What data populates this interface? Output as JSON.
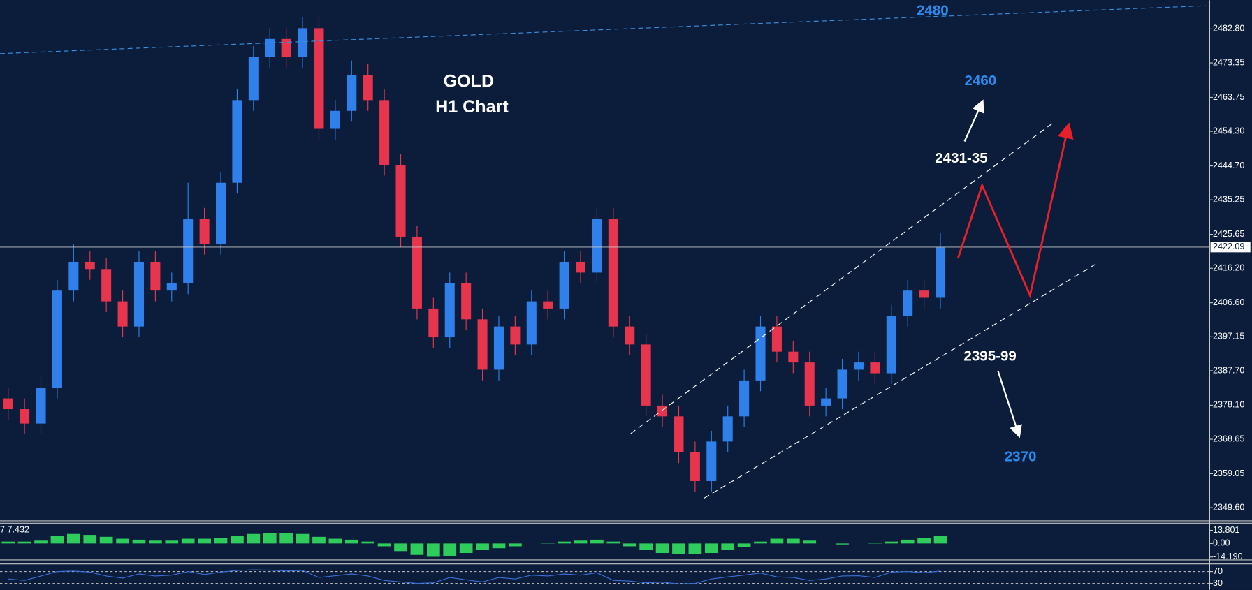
{
  "chart_data": {
    "type": "candlestick",
    "title": "GOLD",
    "subtitle": "H1 Chart",
    "open": [
      2380,
      2377,
      2373,
      2383,
      2410,
      2418,
      2416,
      2407,
      2400,
      2418,
      2410,
      2412,
      2430,
      2423,
      2440,
      2463,
      2475,
      2480,
      2475,
      2483,
      2455,
      2460,
      2470,
      2463,
      2445,
      2425,
      2405,
      2397,
      2412,
      2402,
      2388,
      2400,
      2395,
      2407,
      2405,
      2418,
      2415,
      2430,
      2400,
      2395,
      2378,
      2375,
      2365,
      2357,
      2368,
      2375,
      2385,
      2400,
      2393,
      2390,
      2378,
      2380,
      2388,
      2390,
      2387,
      2403,
      2410,
      2408
    ],
    "high": [
      2383,
      2380,
      2386,
      2413,
      2423,
      2421,
      2419,
      2410,
      2421,
      2421,
      2415,
      2440,
      2433,
      2443,
      2466,
      2478,
      2483,
      2483,
      2486,
      2486,
      2463,
      2474,
      2473,
      2466,
      2448,
      2428,
      2408,
      2415,
      2415,
      2405,
      2403,
      2403,
      2410,
      2410,
      2421,
      2421,
      2433,
      2433,
      2403,
      2398,
      2381,
      2378,
      2368,
      2371,
      2378,
      2388,
      2403,
      2403,
      2396,
      2393,
      2383,
      2391,
      2393,
      2393,
      2406,
      2413,
      2413,
      2426
    ],
    "low": [
      2374,
      2370,
      2370,
      2380,
      2407,
      2413,
      2404,
      2397,
      2397,
      2407,
      2407,
      2409,
      2420,
      2420,
      2437,
      2460,
      2472,
      2472,
      2472,
      2452,
      2452,
      2457,
      2460,
      2442,
      2422,
      2402,
      2394,
      2394,
      2399,
      2385,
      2385,
      2392,
      2392,
      2402,
      2402,
      2412,
      2412,
      2397,
      2392,
      2375,
      2372,
      2362,
      2354,
      2354,
      2365,
      2372,
      2382,
      2390,
      2387,
      2375,
      2375,
      2377,
      2385,
      2384,
      2384,
      2400,
      2405,
      2405
    ],
    "close": [
      2377,
      2373,
      2383,
      2410,
      2418,
      2416,
      2407,
      2400,
      2418,
      2410,
      2412,
      2430,
      2423,
      2440,
      2463,
      2475,
      2480,
      2475,
      2483,
      2455,
      2460,
      2470,
      2463,
      2445,
      2425,
      2405,
      2397,
      2412,
      2402,
      2388,
      2400,
      2395,
      2407,
      2405,
      2418,
      2415,
      2430,
      2400,
      2395,
      2378,
      2375,
      2365,
      2357,
      2368,
      2375,
      2385,
      2400,
      2393,
      2390,
      2378,
      2380,
      2388,
      2390,
      2387,
      2403,
      2410,
      2408,
      2422
    ],
    "up_color": "#2f80ea",
    "down_color": "#e8354e",
    "ylim": [
      2346.05,
      2490.8
    ],
    "yticks": [
      {
        "value": 2482.8,
        "label": "2482.80"
      },
      2473.35,
      2463.75,
      {
        "value": 2454.3,
        "label": "2454.30"
      },
      {
        "value": 2444.7,
        "label": "2444.70"
      },
      2435.25,
      2425.65,
      {
        "value": 2416.2,
        "label": "2416.20"
      },
      {
        "value": 2406.6,
        "label": "2406.60"
      },
      2397.15,
      {
        "value": 2387.7,
        "label": "2387.70"
      },
      {
        "value": 2378.1,
        "label": "2378.10"
      },
      2368.65,
      2359.05,
      {
        "value": 2349.6,
        "label": "2349.60"
      }
    ],
    "last_price": 2422.09,
    "annotations": [
      "2480",
      "2460",
      "2431-35",
      "2395-99",
      "2370"
    ],
    "macd": {
      "type": "bar",
      "label": "7 7.432",
      "color": "#2ecc5a",
      "values": [
        2,
        2,
        3,
        8,
        10,
        9,
        7,
        5,
        4,
        3,
        3,
        5,
        5,
        6,
        8,
        10,
        11,
        11,
        10,
        7,
        5,
        4,
        2,
        -3,
        -8,
        -12,
        -14,
        -13,
        -10,
        -7,
        -5,
        -3,
        0,
        1,
        2,
        3,
        4,
        2,
        -3,
        -7,
        -10,
        -11,
        -11,
        -10,
        -7,
        -4,
        2,
        5,
        5,
        3,
        0,
        -1,
        0,
        1,
        2,
        4,
        6,
        8
      ],
      "ylim": [
        -16,
        20
      ],
      "yticks": [
        13.801,
        {
          "value": 0,
          "label": "0.00"
        },
        {
          "value": -14.19,
          "label": "-14.190"
        }
      ]
    },
    "rsi": {
      "type": "line",
      "color": "#3b6fd8",
      "values": [
        45,
        40,
        55,
        70,
        72,
        68,
        55,
        48,
        62,
        55,
        58,
        70,
        60,
        68,
        74,
        76,
        75,
        72,
        74,
        50,
        56,
        62,
        55,
        40,
        35,
        30,
        32,
        50,
        42,
        35,
        50,
        45,
        58,
        55,
        62,
        58,
        66,
        40,
        38,
        32,
        34,
        28,
        30,
        45,
        52,
        58,
        65,
        52,
        50,
        40,
        45,
        55,
        56,
        50,
        68,
        70,
        66,
        72
      ],
      "ylim": [
        0,
        100
      ],
      "yticks": [
        70,
        30
      ]
    }
  }
}
